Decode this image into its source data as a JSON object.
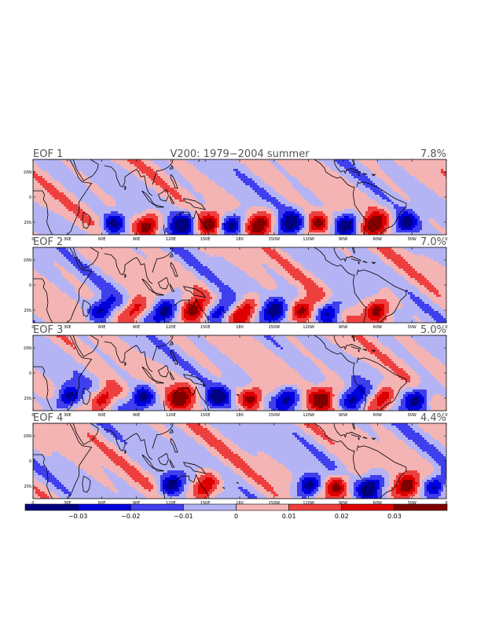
{
  "figure": {
    "title": "V200: 1979−2004 summer"
  },
  "chart_data": [
    {
      "type": "heatmap",
      "panel_label": "EOF 1",
      "variance_text": "7.8%",
      "x_ticks": [
        "0",
        "30E",
        "60E",
        "90E",
        "120E",
        "150E",
        "180",
        "150W",
        "120W",
        "90W",
        "60W",
        "30W",
        "0"
      ],
      "y_ticks": [
        "20N",
        "0",
        "20S"
      ],
      "xlim": [
        0,
        360
      ],
      "ylim": [
        -30,
        30
      ],
      "wave_amplitude": 0.035,
      "wave_center_lat": -22,
      "wave_centers_lon": [
        70,
        100,
        130,
        153,
        173,
        197,
        223,
        247,
        273,
        297,
        323
      ]
    },
    {
      "type": "heatmap",
      "panel_label": "EOF 2",
      "variance_text": "7.0%",
      "x_ticks": [
        "0",
        "30E",
        "60E",
        "90E",
        "120E",
        "150E",
        "180",
        "150W",
        "120W",
        "90W",
        "60W",
        "30W",
        "0"
      ],
      "y_ticks": [
        "20N",
        "0",
        "20S"
      ],
      "xlim": [
        0,
        360
      ],
      "ylim": [
        -30,
        30
      ],
      "wave_amplitude": 0.035,
      "wave_center_lat": -20,
      "wave_centers_lon": [
        60,
        88,
        115,
        140,
        163,
        185,
        210,
        235,
        260,
        300
      ]
    },
    {
      "type": "heatmap",
      "panel_label": "EOF 3",
      "variance_text": "5.0%",
      "x_ticks": [
        "0",
        "30E",
        "60E",
        "90E",
        "120E",
        "150E",
        "180",
        "150W",
        "120W",
        "90W",
        "60W",
        "30W",
        "0"
      ],
      "y_ticks": [
        "20N",
        "0",
        "20S"
      ],
      "xlim": [
        0,
        360
      ],
      "ylim": [
        -30,
        30
      ],
      "wave_amplitude": 0.035,
      "wave_center_lat": -20,
      "wave_centers_lon": [
        30,
        62,
        95,
        128,
        160,
        190,
        222,
        252,
        280,
        305,
        335
      ]
    },
    {
      "type": "heatmap",
      "panel_label": "EOF 4",
      "variance_text": "4.4%",
      "x_ticks": [
        "0",
        "30E",
        "60E",
        "90E",
        "120E",
        "150E",
        "180",
        "150W",
        "120W",
        "90W",
        "60W",
        "30W",
        "0"
      ],
      "y_ticks": [
        "20N",
        "0",
        "20S"
      ],
      "xlim": [
        0,
        360
      ],
      "ylim": [
        -30,
        30
      ],
      "wave_amplitude": 0.035,
      "wave_center_lat": -20,
      "wave_centers_lon": [
        120,
        150,
        240,
        265,
        295,
        325,
        350
      ]
    }
  ],
  "colorbar": {
    "ticks": [
      "−0.03",
      "−0.02",
      "−0.01",
      "0",
      "0.01",
      "0.02",
      "0.03"
    ],
    "colors": [
      "#000080",
      "#0000dd",
      "#3f3fee",
      "#b4b4f4",
      "#f4b4b4",
      "#ee3f3f",
      "#dd0000",
      "#800000"
    ]
  }
}
